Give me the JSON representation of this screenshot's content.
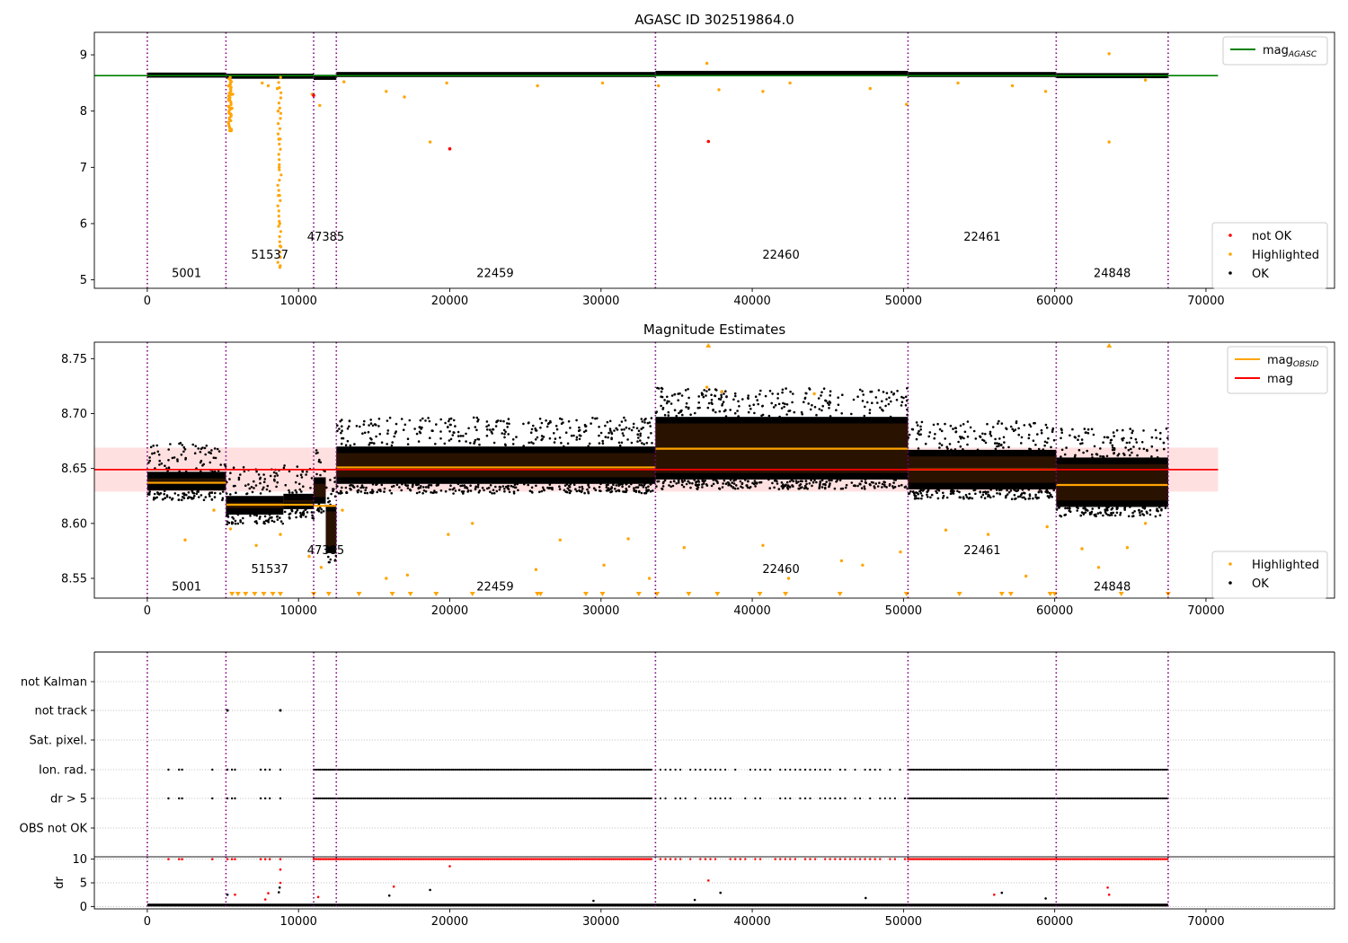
{
  "chart_data": [
    {
      "type": "scatter",
      "title": "AGASC ID 302519864.0",
      "xlabel": "",
      "ylabel": "",
      "xlim": [
        -3500,
        78500
      ],
      "ylim": [
        4.85,
        9.4
      ],
      "xticks": [
        "0",
        "10000",
        "20000",
        "30000",
        "40000",
        "50000",
        "60000",
        "70000"
      ],
      "yticks": [
        "5",
        "6",
        "7",
        "8",
        "9"
      ],
      "obsid_boundaries": [
        0,
        5200,
        11000,
        12500,
        33600,
        50300,
        60100,
        67500
      ],
      "obsid_labels": [
        {
          "text": "5001",
          "x": 2600,
          "y": 5.05
        },
        {
          "text": "51537",
          "x": 8100,
          "y": 5.38
        },
        {
          "text": "47385",
          "x": 11800,
          "y": 5.7
        },
        {
          "text": "22459",
          "x": 23000,
          "y": 5.05
        },
        {
          "text": "22460",
          "x": 41900,
          "y": 5.38
        },
        {
          "text": "22461",
          "x": 55200,
          "y": 5.7
        },
        {
          "text": "24848",
          "x": 63800,
          "y": 5.05
        }
      ],
      "mag_agasc": {
        "name": "mag_AGASC",
        "value": 8.63,
        "x_range": [
          -3500,
          70800
        ],
        "color": "#008000"
      },
      "ok_band": [
        {
          "x0": 0,
          "x1": 5200,
          "center": 8.64
        },
        {
          "x0": 5200,
          "x1": 11000,
          "center": 8.62
        },
        {
          "x0": 11000,
          "x1": 12500,
          "center": 8.6
        },
        {
          "x0": 12500,
          "x1": 33600,
          "center": 8.65
        },
        {
          "x0": 33600,
          "x1": 50300,
          "center": 8.67
        },
        {
          "x0": 50300,
          "x1": 60100,
          "center": 8.65
        },
        {
          "x0": 60100,
          "x1": 67500,
          "center": 8.63
        }
      ],
      "highlighted_points": [
        {
          "x": 5400,
          "y": 8.45
        },
        {
          "x": 5450,
          "y": 8.2
        },
        {
          "x": 5500,
          "y": 7.95
        },
        {
          "x": 5550,
          "y": 7.65
        },
        {
          "x": 5600,
          "y": 8.05
        },
        {
          "x": 5650,
          "y": 8.3
        },
        {
          "x": 7600,
          "y": 8.5
        },
        {
          "x": 8000,
          "y": 8.45
        },
        {
          "x": 8600,
          "y": 8.4
        },
        {
          "x": 8650,
          "y": 8.0
        },
        {
          "x": 8700,
          "y": 7.5
        },
        {
          "x": 8720,
          "y": 7.0
        },
        {
          "x": 8740,
          "y": 6.5
        },
        {
          "x": 8760,
          "y": 6.0
        },
        {
          "x": 8780,
          "y": 5.6
        },
        {
          "x": 8790,
          "y": 5.25
        },
        {
          "x": 10900,
          "y": 8.3
        },
        {
          "x": 11400,
          "y": 8.1
        },
        {
          "x": 13000,
          "y": 8.52
        },
        {
          "x": 15800,
          "y": 8.35
        },
        {
          "x": 17000,
          "y": 8.25
        },
        {
          "x": 18700,
          "y": 7.45
        },
        {
          "x": 19800,
          "y": 8.5
        },
        {
          "x": 25800,
          "y": 8.45
        },
        {
          "x": 30100,
          "y": 8.5
        },
        {
          "x": 33800,
          "y": 8.45
        },
        {
          "x": 37000,
          "y": 8.85
        },
        {
          "x": 37800,
          "y": 8.38
        },
        {
          "x": 40700,
          "y": 8.35
        },
        {
          "x": 42500,
          "y": 8.5
        },
        {
          "x": 47800,
          "y": 8.4
        },
        {
          "x": 50200,
          "y": 8.12
        },
        {
          "x": 53600,
          "y": 8.5
        },
        {
          "x": 57200,
          "y": 8.45
        },
        {
          "x": 59400,
          "y": 8.35
        },
        {
          "x": 63600,
          "y": 9.02
        },
        {
          "x": 63600,
          "y": 7.45
        },
        {
          "x": 66000,
          "y": 8.55
        }
      ],
      "not_ok_points": [
        {
          "x": 11000,
          "y": 8.28
        },
        {
          "x": 20000,
          "y": 7.33
        },
        {
          "x": 37100,
          "y": 7.46
        }
      ],
      "legend_upper": {
        "entries": [
          {
            "label": "mag",
            "sub": "AGASC",
            "color": "#008000"
          }
        ],
        "placement": "top-right"
      },
      "legend_lower": {
        "entries": [
          {
            "label": "not OK",
            "color": "#ff0000"
          },
          {
            "label": "Highlighted",
            "color": "#ffa500"
          },
          {
            "label": "OK",
            "color": "#000000"
          }
        ],
        "placement": "bottom-right"
      },
      "grid": false
    },
    {
      "type": "scatter",
      "title": "Magnitude Estimates",
      "xlabel": "",
      "ylabel": "",
      "xlim": [
        -3500,
        78500
      ],
      "ylim": [
        8.532,
        8.765
      ],
      "xticks": [
        "0",
        "10000",
        "20000",
        "30000",
        "40000",
        "50000",
        "60000",
        "70000"
      ],
      "yticks": [
        "8.55",
        "8.60",
        "8.65",
        "8.70",
        "8.75"
      ],
      "obsid_boundaries": [
        0,
        5200,
        11000,
        12500,
        33600,
        50300,
        60100,
        67500
      ],
      "obsid_labels": [
        {
          "text": "5001",
          "x": 2600,
          "y": 8.539
        },
        {
          "text": "51537",
          "x": 8100,
          "y": 8.555
        },
        {
          "text": "47385",
          "x": 11800,
          "y": 8.572
        },
        {
          "text": "22459",
          "x": 23000,
          "y": 8.539
        },
        {
          "text": "22460",
          "x": 41900,
          "y": 8.555
        },
        {
          "text": "22461",
          "x": 55200,
          "y": 8.572
        },
        {
          "text": "24848",
          "x": 63800,
          "y": 8.539
        }
      ],
      "mag": {
        "name": "mag",
        "value": 8.649,
        "x_range": [
          -3500,
          70800
        ],
        "color": "#ff0000"
      },
      "mag_band": {
        "low": 8.629,
        "high": 8.669,
        "color": "#ff0000"
      },
      "mag_obsid": [
        {
          "x0": 0,
          "x1": 5200,
          "value": 8.637
        },
        {
          "x0": 5200,
          "x1": 11000,
          "value": 8.617
        },
        {
          "x0": 11000,
          "x1": 12500,
          "value": 8.616
        },
        {
          "x0": 12500,
          "x1": 33600,
          "value": 8.651
        },
        {
          "x0": 33600,
          "x1": 50300,
          "value": 8.668
        },
        {
          "x0": 50300,
          "x1": 60100,
          "value": 8.649
        },
        {
          "x0": 60100,
          "x1": 67500,
          "value": 8.635
        }
      ],
      "ok_segments": [
        {
          "x0": 0,
          "x1": 5200,
          "low": 8.622,
          "high": 8.655
        },
        {
          "x0": 5200,
          "x1": 9000,
          "low": 8.6,
          "high": 8.633
        },
        {
          "x0": 9000,
          "x1": 11000,
          "low": 8.605,
          "high": 8.635
        },
        {
          "x0": 11000,
          "x1": 11800,
          "low": 8.61,
          "high": 8.65
        },
        {
          "x0": 11800,
          "x1": 12500,
          "low": 8.565,
          "high": 8.625
        },
        {
          "x0": 12500,
          "x1": 33600,
          "low": 8.628,
          "high": 8.678
        },
        {
          "x0": 33600,
          "x1": 50300,
          "low": 8.632,
          "high": 8.705
        },
        {
          "x0": 50300,
          "x1": 60100,
          "low": 8.623,
          "high": 8.675
        },
        {
          "x0": 60100,
          "x1": 67500,
          "low": 8.607,
          "high": 8.668
        }
      ],
      "highlighted_points": [
        {
          "x": 2500,
          "y": 8.585
        },
        {
          "x": 4400,
          "y": 8.612
        },
        {
          "x": 5500,
          "y": 8.595
        },
        {
          "x": 7200,
          "y": 8.58
        },
        {
          "x": 8800,
          "y": 8.59
        },
        {
          "x": 10700,
          "y": 8.57
        },
        {
          "x": 11500,
          "y": 8.56
        },
        {
          "x": 12900,
          "y": 8.612
        },
        {
          "x": 15800,
          "y": 8.55
        },
        {
          "x": 17200,
          "y": 8.553
        },
        {
          "x": 19900,
          "y": 8.59
        },
        {
          "x": 21500,
          "y": 8.6
        },
        {
          "x": 25700,
          "y": 8.558
        },
        {
          "x": 27300,
          "y": 8.585
        },
        {
          "x": 30200,
          "y": 8.562
        },
        {
          "x": 31800,
          "y": 8.586
        },
        {
          "x": 33200,
          "y": 8.55
        },
        {
          "x": 35500,
          "y": 8.578
        },
        {
          "x": 37000,
          "y": 8.724
        },
        {
          "x": 38000,
          "y": 8.72
        },
        {
          "x": 40700,
          "y": 8.58
        },
        {
          "x": 42400,
          "y": 8.55
        },
        {
          "x": 44100,
          "y": 8.718
        },
        {
          "x": 45900,
          "y": 8.566
        },
        {
          "x": 47300,
          "y": 8.562
        },
        {
          "x": 49800,
          "y": 8.574
        },
        {
          "x": 52800,
          "y": 8.594
        },
        {
          "x": 55600,
          "y": 8.59
        },
        {
          "x": 58100,
          "y": 8.552
        },
        {
          "x": 59500,
          "y": 8.597
        },
        {
          "x": 61800,
          "y": 8.577
        },
        {
          "x": 62900,
          "y": 8.56
        },
        {
          "x": 64800,
          "y": 8.578
        },
        {
          "x": 66000,
          "y": 8.6
        }
      ],
      "off_scale_low_x": [
        5600,
        6000,
        6500,
        7100,
        7700,
        8300,
        8800,
        11000,
        12000,
        14000,
        16200,
        17400,
        19100,
        21500,
        25800,
        26000,
        29000,
        30100,
        32500,
        33700,
        35800,
        37700,
        40500,
        42200,
        45800,
        50200,
        53700,
        56500,
        57100,
        59700,
        60000,
        64400,
        67500
      ],
      "off_scale_high_x": [
        37100,
        63600
      ],
      "legend_upper": {
        "entries": [
          {
            "label": "mag",
            "sub": "OBSID",
            "color": "#ffa500"
          },
          {
            "label": "mag",
            "color": "#ff0000"
          }
        ],
        "placement": "top-right"
      },
      "legend_lower": {
        "entries": [
          {
            "label": "Highlighted",
            "color": "#ffa500"
          },
          {
            "label": "OK",
            "color": "#000000"
          }
        ],
        "placement": "bottom-right"
      },
      "grid": false
    },
    {
      "type": "scatter",
      "title": "",
      "xlabel": "",
      "ylabel": "",
      "xlim": [
        -3500,
        78500
      ],
      "categories": [
        "not Kalman",
        "not track",
        "Sat. pixel.",
        "Ion. rad.",
        "dr > 5",
        "OBS not OK"
      ],
      "obsid_boundaries": [
        0,
        5200,
        11000,
        12500,
        33600,
        50300,
        60100,
        67500
      ],
      "flag_points": {
        "not track": [
          5300,
          8800
        ],
        "Ion. rad.": {
          "sparse_x": [
            1400,
            2100,
            2300,
            4300,
            5300,
            5600,
            5800,
            7500,
            7800,
            8100,
            8800
          ],
          "dense_ranges": [
            [
              11000,
              33400
            ],
            [
              50300,
              67500
            ]
          ],
          "sparse_ranges": [
            [
              33600,
              50300
            ]
          ]
        },
        "dr > 5": {
          "sparse_x": [
            1400,
            2100,
            2300,
            4300,
            5300,
            5600,
            5800,
            7500,
            7800,
            8100,
            8800
          ],
          "dense_ranges": [
            [
              11000,
              33400
            ],
            [
              50300,
              67500
            ]
          ],
          "sparse_ranges": [
            [
              33600,
              50300
            ]
          ]
        }
      },
      "grid": true
    },
    {
      "type": "scatter",
      "title": "",
      "xlabel": "",
      "ylabel": "dr",
      "xlim": [
        -3500,
        78500
      ],
      "ylim": [
        -0.5,
        10.5
      ],
      "xticks": [
        "0",
        "10000",
        "20000",
        "30000",
        "40000",
        "50000",
        "60000",
        "70000"
      ],
      "yticks": [
        "0",
        "5",
        "10"
      ],
      "obsid_boundaries": [
        0,
        5200,
        11000,
        12500,
        33600,
        50300,
        60100,
        67500
      ],
      "dr_band": {
        "low": 0.0,
        "high": 0.6
      },
      "dr_red_capped": {
        "value": 10,
        "sparse_x": [
          1400,
          2100,
          2300,
          4300,
          5300,
          5600,
          5800,
          7500,
          7800,
          8100,
          8800
        ],
        "dense_ranges": [
          [
            11000,
            33400
          ],
          [
            50300,
            67500
          ]
        ],
        "sparse_ranges": [
          [
            33600,
            50300
          ]
        ]
      },
      "dr_red_points": [
        {
          "x": 5800,
          "y": 2.5
        },
        {
          "x": 7800,
          "y": 1.5
        },
        {
          "x": 8000,
          "y": 2.8
        },
        {
          "x": 8800,
          "y": 7.8
        },
        {
          "x": 8800,
          "y": 5.0
        },
        {
          "x": 11300,
          "y": 2.0
        },
        {
          "x": 16300,
          "y": 4.2
        },
        {
          "x": 20000,
          "y": 8.5
        },
        {
          "x": 37100,
          "y": 5.5
        },
        {
          "x": 56000,
          "y": 2.5
        },
        {
          "x": 63500,
          "y": 4.0
        },
        {
          "x": 63600,
          "y": 2.5
        }
      ],
      "dr_black_points": [
        {
          "x": 5300,
          "y": 2.5
        },
        {
          "x": 8700,
          "y": 3.0
        },
        {
          "x": 8750,
          "y": 4.0
        },
        {
          "x": 16000,
          "y": 2.3
        },
        {
          "x": 18700,
          "y": 3.5
        },
        {
          "x": 29500,
          "y": 1.2
        },
        {
          "x": 36200,
          "y": 1.4
        },
        {
          "x": 37900,
          "y": 2.9
        },
        {
          "x": 47500,
          "y": 1.8
        },
        {
          "x": 56500,
          "y": 2.9
        },
        {
          "x": 59400,
          "y": 1.7
        }
      ],
      "grid": true
    }
  ]
}
